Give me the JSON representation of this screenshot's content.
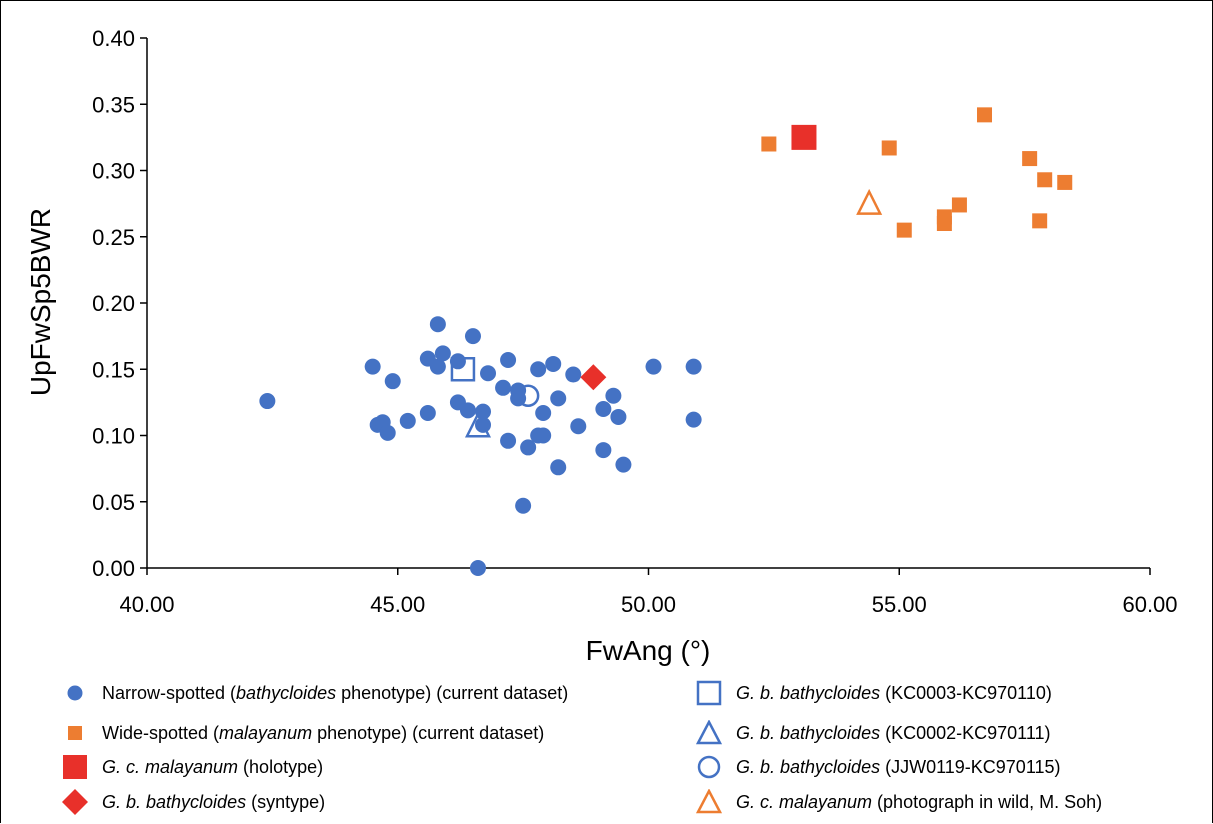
{
  "chart_data": {
    "type": "scatter",
    "xlabel": "FwAng (°)",
    "ylabel": "UpFwSp5BWR",
    "xlim": [
      40,
      60
    ],
    "ylim": [
      0,
      0.4
    ],
    "xticks": [
      "40.00",
      "45.00",
      "50.00",
      "55.00",
      "60.00"
    ],
    "yticks": [
      "0.00",
      "0.05",
      "0.10",
      "0.15",
      "0.20",
      "0.25",
      "0.30",
      "0.35",
      "0.40"
    ],
    "grid": false,
    "legend_position": "bottom",
    "series": [
      {
        "name": "Narrow-spotted (bathycloides phenotype) (current dataset)",
        "marker": "circle-filled",
        "color": "#4472C4",
        "points": [
          [
            42.4,
            0.126
          ],
          [
            44.5,
            0.152
          ],
          [
            44.6,
            0.108
          ],
          [
            44.7,
            0.11
          ],
          [
            44.8,
            0.102
          ],
          [
            44.9,
            0.141
          ],
          [
            45.2,
            0.111
          ],
          [
            45.6,
            0.158
          ],
          [
            45.6,
            0.117
          ],
          [
            45.8,
            0.184
          ],
          [
            45.8,
            0.152
          ],
          [
            45.9,
            0.162
          ],
          [
            46.2,
            0.125
          ],
          [
            46.2,
            0.156
          ],
          [
            46.4,
            0.119
          ],
          [
            46.5,
            0.175
          ],
          [
            46.7,
            0.108
          ],
          [
            46.7,
            0.118
          ],
          [
            46.8,
            0.147
          ],
          [
            47.1,
            0.136
          ],
          [
            47.2,
            0.157
          ],
          [
            47.2,
            0.096
          ],
          [
            47.4,
            0.134
          ],
          [
            47.4,
            0.128
          ],
          [
            47.5,
            0.047
          ],
          [
            47.6,
            0.091
          ],
          [
            47.8,
            0.15
          ],
          [
            47.8,
            0.1
          ],
          [
            47.9,
            0.117
          ],
          [
            47.9,
            0.1
          ],
          [
            48.1,
            0.154
          ],
          [
            48.2,
            0.076
          ],
          [
            48.2,
            0.128
          ],
          [
            48.5,
            0.146
          ],
          [
            48.6,
            0.107
          ],
          [
            49.1,
            0.12
          ],
          [
            49.1,
            0.089
          ],
          [
            49.3,
            0.13
          ],
          [
            49.4,
            0.114
          ],
          [
            49.5,
            0.078
          ],
          [
            50.1,
            0.152
          ],
          [
            50.9,
            0.152
          ],
          [
            50.9,
            0.112
          ],
          [
            46.6,
            0.0
          ]
        ]
      },
      {
        "name": "Wide-spotted (malayanum phenotype) (current dataset)",
        "marker": "square-filled",
        "color": "#ED7D31",
        "points": [
          [
            52.4,
            0.32
          ],
          [
            54.8,
            0.317
          ],
          [
            55.1,
            0.255
          ],
          [
            55.9,
            0.265
          ],
          [
            55.9,
            0.26
          ],
          [
            56.2,
            0.274
          ],
          [
            56.7,
            0.342
          ],
          [
            57.6,
            0.309
          ],
          [
            57.8,
            0.262
          ],
          [
            57.9,
            0.293
          ],
          [
            58.3,
            0.291
          ]
        ]
      },
      {
        "name": "G. c. malayanum (holotype)",
        "marker": "square-filled-large",
        "color": "#E8302A",
        "points": [
          [
            53.1,
            0.325
          ]
        ]
      },
      {
        "name": "G. b. bathycloides (syntype)",
        "marker": "diamond-filled",
        "color": "#E8302A",
        "points": [
          [
            48.9,
            0.144
          ]
        ]
      },
      {
        "name": "G. b. bathycloides (KC0003-KC970110)",
        "marker": "square-open",
        "color": "#4472C4",
        "points": [
          [
            46.3,
            0.15
          ]
        ]
      },
      {
        "name": "G. b. bathycloides (KC0002-KC970111)",
        "marker": "triangle-open",
        "color": "#4472C4",
        "points": [
          [
            46.6,
            0.107
          ]
        ]
      },
      {
        "name": "G. b. bathycloides (JJW0119-KC970115)",
        "marker": "circle-open",
        "color": "#4472C4",
        "points": [
          [
            47.6,
            0.13
          ]
        ]
      },
      {
        "name": "G. c. malayanum (photograph in wild, M. Soh)",
        "marker": "triangle-open",
        "color": "#ED7D31",
        "points": [
          [
            54.4,
            0.275
          ]
        ]
      }
    ]
  },
  "legend": [
    {
      "pre": "Narrow-spotted (",
      "ital": "bathycloides",
      "post": " phenotype) (current dataset)"
    },
    {
      "pre": "Wide-spotted (",
      "ital": "malayanum",
      "post": " phenotype) (current dataset)"
    },
    {
      "pre": "",
      "ital": "G. c. malayanum",
      "post": " (holotype)"
    },
    {
      "pre": "",
      "ital": "G. b. bathycloides",
      "post": " (syntype)"
    },
    {
      "pre": "",
      "ital": "G. b. bathycloides",
      "post": " (KC0003-KC970110)"
    },
    {
      "pre": "",
      "ital": "G. b. bathycloides",
      "post": " (KC0002-KC970111)"
    },
    {
      "pre": "",
      "ital": "G. b. bathycloides",
      "post": " (JJW0119-KC970115)"
    },
    {
      "pre": "",
      "ital": "G. c. malayanum",
      "post": " (photograph in wild, M. Soh)"
    }
  ]
}
